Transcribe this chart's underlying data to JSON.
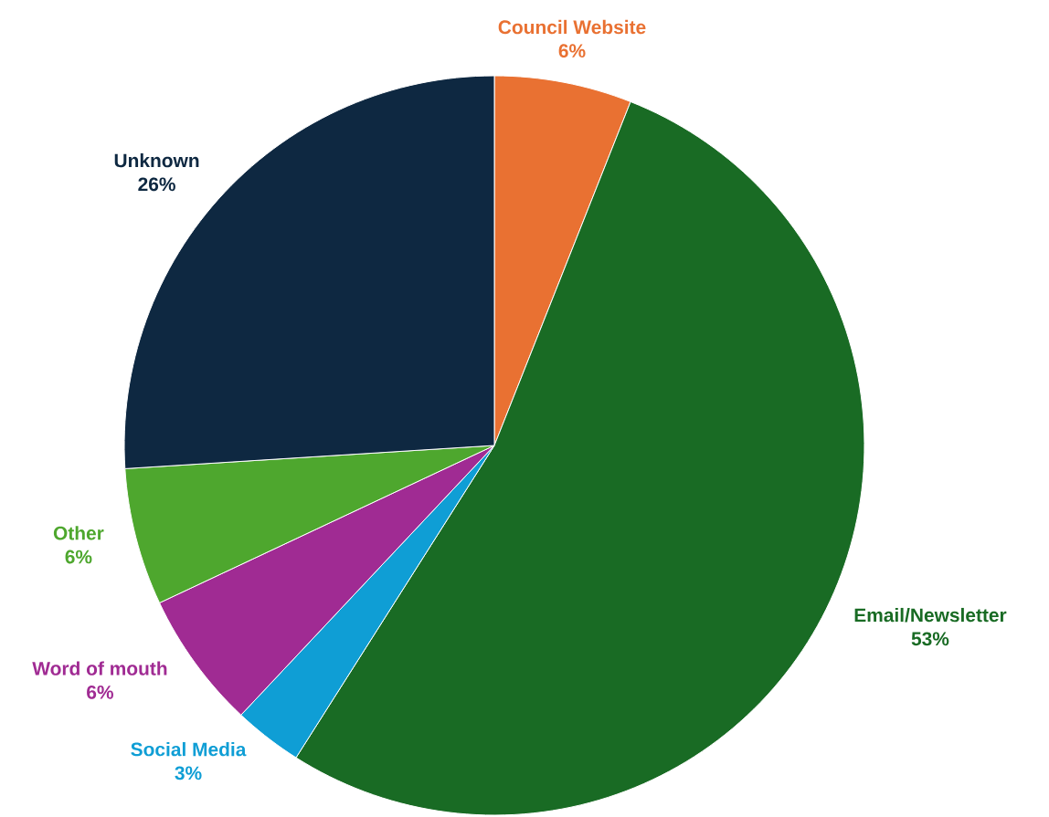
{
  "chart_data": {
    "type": "pie",
    "categories": [
      "Council Website",
      "Email/Newsletter",
      "Social Media",
      "Word of mouth",
      "Other",
      "Unknown"
    ],
    "values": [
      6,
      53,
      3,
      6,
      6,
      26
    ],
    "value_labels": [
      "6%",
      "53%",
      "3%",
      "6%",
      "6%",
      "26%"
    ],
    "colors": [
      "#e97132",
      "#196b24",
      "#0f9ed5",
      "#a02b93",
      "#4ea72e",
      "#0e2841"
    ]
  }
}
